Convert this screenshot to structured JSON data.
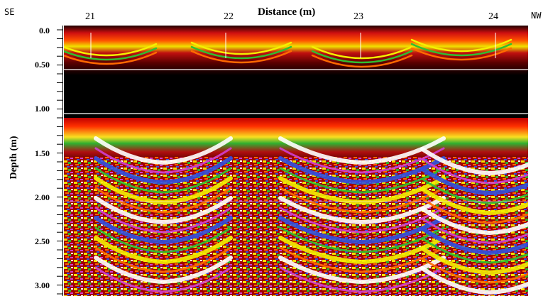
{
  "header": {
    "title": "Distance (m)",
    "direction_left": "SE",
    "direction_right": "NW"
  },
  "x_axis": {
    "ticks": [
      "21",
      "22",
      "23",
      "24"
    ]
  },
  "y_axis": {
    "label": "Depth (m)",
    "ticks": [
      "0.0",
      "0.50",
      "1.00",
      "1.50",
      "2.00",
      "2.50",
      "3.00"
    ]
  },
  "colors": {
    "background": "#000000",
    "amplitude_scale": [
      "#000000",
      "#5a0000",
      "#a00000",
      "#e01010",
      "#ff6a00",
      "#ffd000",
      "#f4f000",
      "#30c030",
      "#3050e0",
      "#d040d0",
      "#ffffff"
    ]
  }
}
